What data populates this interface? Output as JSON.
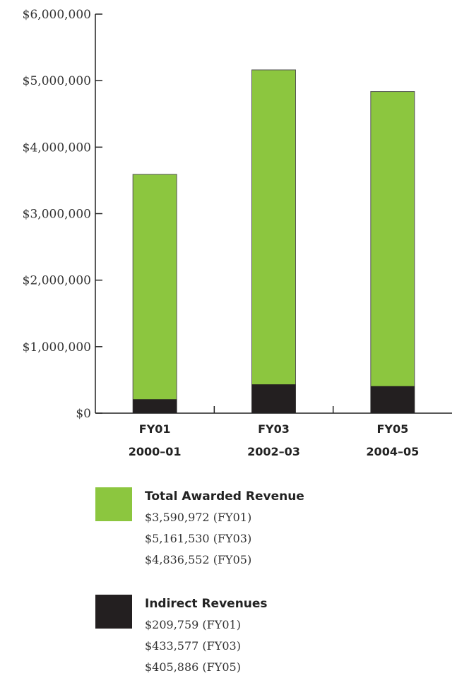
{
  "chart_data": {
    "type": "bar",
    "stacked": true,
    "title": "",
    "xlabel": "",
    "ylabel": "",
    "ylim": [
      0,
      6000000
    ],
    "y_ticks": [
      "$6,000,000",
      "$5,000,000",
      "$4,000,000",
      "$3,000,000",
      "$2,000,000",
      "$1,000,000",
      "$0"
    ],
    "y_tick_values": [
      6000000,
      5000000,
      4000000,
      3000000,
      2000000,
      1000000,
      0
    ],
    "categories": [
      {
        "code": "FY01",
        "years": "2000–01"
      },
      {
        "code": "FY03",
        "years": "2002–03"
      },
      {
        "code": "FY05",
        "years": "2004–05"
      }
    ],
    "series": [
      {
        "name": "Total Awarded Revenue",
        "color": "#8cc63f",
        "values": [
          3590972,
          5161530,
          4836552
        ]
      },
      {
        "name": "Indirect Revenues",
        "color": "#231f20",
        "values": [
          209759,
          433577,
          405886
        ]
      }
    ],
    "grid": false,
    "legend_position": "bottom"
  },
  "legend": {
    "total": {
      "title": "Total Awarded Revenue",
      "lines": [
        "$3,590,972 (FY01)",
        "$5,161,530 (FY03)",
        "$4,836,552 (FY05)"
      ]
    },
    "indirect": {
      "title": "Indirect Revenues",
      "lines": [
        "$209,759 (FY01)",
        "$433,577 (FY03)",
        "$405,886 (FY05)"
      ]
    }
  }
}
